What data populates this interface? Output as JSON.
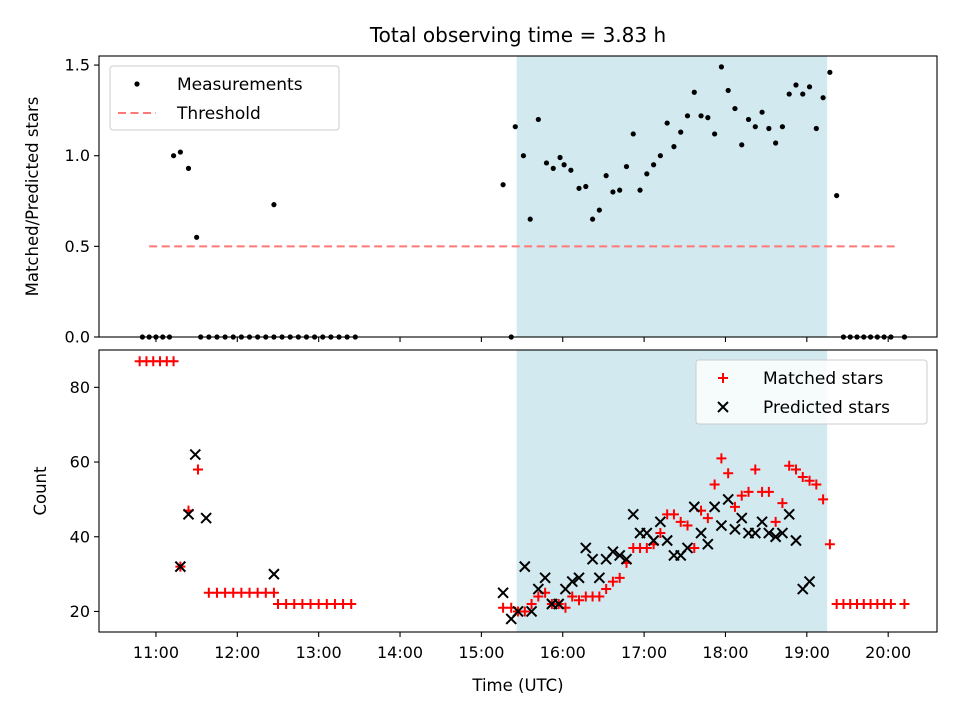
{
  "chart_data": {
    "title": "Total observing time = 3.83 h",
    "xlabel": "Time (UTC)",
    "x_ticks": [
      "11:00",
      "12:00",
      "13:00",
      "14:00",
      "15:00",
      "16:00",
      "17:00",
      "18:00",
      "19:00",
      "20:00"
    ],
    "shaded_span": [
      "15:26",
      "19:15"
    ],
    "shade_color": "#d2e9f0",
    "panels": [
      {
        "type": "scatter",
        "ylabel": "Matched/Predicted stars",
        "ylim": [
          0,
          1.55
        ],
        "y_ticks": [
          "0.0",
          "0.5",
          "1.0",
          "1.5"
        ],
        "legend_position": "upper-left",
        "series": [
          {
            "name": "Measurements",
            "marker": "dot",
            "color": "#000000",
            "points": [
              [
                "10:50",
                0
              ],
              [
                "10:55",
                0
              ],
              [
                "11:00",
                0
              ],
              [
                "11:05",
                0
              ],
              [
                "11:10",
                0
              ],
              [
                "11:13",
                1.0
              ],
              [
                "11:18",
                1.02
              ],
              [
                "11:24",
                0.93
              ],
              [
                "11:30",
                0.55
              ],
              [
                "11:33",
                0
              ],
              [
                "11:39",
                0
              ],
              [
                "11:45",
                0
              ],
              [
                "11:51",
                0
              ],
              [
                "11:57",
                0
              ],
              [
                "12:03",
                0
              ],
              [
                "12:09",
                0
              ],
              [
                "12:15",
                0
              ],
              [
                "12:21",
                0
              ],
              [
                "12:27",
                0
              ],
              [
                "12:27",
                0.73
              ],
              [
                "12:33",
                0
              ],
              [
                "12:39",
                0
              ],
              [
                "12:45",
                0
              ],
              [
                "12:51",
                0
              ],
              [
                "12:57",
                0
              ],
              [
                "13:03",
                0
              ],
              [
                "13:09",
                0
              ],
              [
                "13:15",
                0
              ],
              [
                "13:21",
                0
              ],
              [
                "13:27",
                0
              ],
              [
                "15:16",
                0.84
              ],
              [
                "15:22",
                0
              ],
              [
                "15:25",
                1.16
              ],
              [
                "15:31",
                1.0
              ],
              [
                "15:36",
                0.65
              ],
              [
                "15:42",
                1.2
              ],
              [
                "15:48",
                0.96
              ],
              [
                "15:53",
                0.93
              ],
              [
                "15:58",
                0.99
              ],
              [
                "16:01",
                0.95
              ],
              [
                "16:06",
                0.92
              ],
              [
                "16:12",
                0.82
              ],
              [
                "16:17",
                0.83
              ],
              [
                "16:22",
                0.65
              ],
              [
                "16:27",
                0.7
              ],
              [
                "16:32",
                0.89
              ],
              [
                "16:37",
                0.8
              ],
              [
                "16:42",
                0.81
              ],
              [
                "16:47",
                0.94
              ],
              [
                "16:52",
                1.12
              ],
              [
                "16:57",
                0.81
              ],
              [
                "17:02",
                0.9
              ],
              [
                "17:07",
                0.95
              ],
              [
                "17:12",
                1.0
              ],
              [
                "17:17",
                1.18
              ],
              [
                "17:22",
                1.05
              ],
              [
                "17:27",
                1.13
              ],
              [
                "17:32",
                1.22
              ],
              [
                "17:37",
                1.35
              ],
              [
                "17:42",
                1.22
              ],
              [
                "17:47",
                1.21
              ],
              [
                "17:52",
                1.12
              ],
              [
                "17:57",
                1.49
              ],
              [
                "18:02",
                1.36
              ],
              [
                "18:07",
                1.26
              ],
              [
                "18:12",
                1.06
              ],
              [
                "18:17",
                1.2
              ],
              [
                "18:22",
                1.16
              ],
              [
                "18:27",
                1.24
              ],
              [
                "18:32",
                1.15
              ],
              [
                "18:37",
                1.07
              ],
              [
                "18:42",
                1.16
              ],
              [
                "18:47",
                1.34
              ],
              [
                "18:52",
                1.39
              ],
              [
                "18:57",
                1.34
              ],
              [
                "19:02",
                1.38
              ],
              [
                "19:07",
                1.15
              ],
              [
                "19:12",
                1.32
              ],
              [
                "19:17",
                1.46
              ],
              [
                "19:22",
                0.78
              ],
              [
                "19:27",
                0
              ],
              [
                "19:32",
                0
              ],
              [
                "19:37",
                0
              ],
              [
                "19:42",
                0
              ],
              [
                "19:47",
                0
              ],
              [
                "19:52",
                0
              ],
              [
                "19:57",
                0
              ],
              [
                "20:02",
                0
              ],
              [
                "20:12",
                0
              ]
            ]
          },
          {
            "name": "Threshold",
            "marker": "dashed-line",
            "color": "#ff7777",
            "points": [
              [
                "10:55",
                0.5
              ],
              [
                "20:05",
                0.5
              ]
            ]
          }
        ]
      },
      {
        "type": "scatter",
        "ylabel": "Count",
        "ylim": [
          14.5,
          90
        ],
        "y_ticks": [
          "20",
          "40",
          "60",
          "80"
        ],
        "legend_position": "upper-right",
        "series": [
          {
            "name": "Matched stars",
            "marker": "plus",
            "color": "#ff0000",
            "points": [
              [
                "10:48",
                87
              ],
              [
                "10:53",
                87
              ],
              [
                "10:58",
                87
              ],
              [
                "11:03",
                87
              ],
              [
                "11:08",
                87
              ],
              [
                "11:13",
                87
              ],
              [
                "11:18",
                32
              ],
              [
                "11:24",
                47
              ],
              [
                "11:31",
                58
              ],
              [
                "11:39",
                25
              ],
              [
                "11:45",
                25
              ],
              [
                "11:51",
                25
              ],
              [
                "11:57",
                25
              ],
              [
                "12:03",
                25
              ],
              [
                "12:09",
                25
              ],
              [
                "12:15",
                25
              ],
              [
                "12:21",
                25
              ],
              [
                "12:27",
                25
              ],
              [
                "12:30",
                22
              ],
              [
                "12:36",
                22
              ],
              [
                "12:42",
                22
              ],
              [
                "12:48",
                22
              ],
              [
                "12:54",
                22
              ],
              [
                "13:00",
                22
              ],
              [
                "13:06",
                22
              ],
              [
                "13:12",
                22
              ],
              [
                "13:18",
                22
              ],
              [
                "13:24",
                22
              ],
              [
                "15:16",
                21
              ],
              [
                "15:22",
                21
              ],
              [
                "15:27",
                20
              ],
              [
                "15:32",
                20
              ],
              [
                "15:37",
                22
              ],
              [
                "15:42",
                24
              ],
              [
                "15:47",
                25
              ],
              [
                "15:52",
                22
              ],
              [
                "15:57",
                22
              ],
              [
                "16:02",
                21
              ],
              [
                "16:07",
                24
              ],
              [
                "16:12",
                23
              ],
              [
                "16:17",
                24
              ],
              [
                "16:22",
                24
              ],
              [
                "16:27",
                24
              ],
              [
                "16:32",
                26
              ],
              [
                "16:37",
                28
              ],
              [
                "16:42",
                29
              ],
              [
                "16:47",
                33
              ],
              [
                "16:52",
                37
              ],
              [
                "16:57",
                37
              ],
              [
                "17:02",
                37
              ],
              [
                "17:07",
                38
              ],
              [
                "17:12",
                41
              ],
              [
                "17:17",
                46
              ],
              [
                "17:22",
                46
              ],
              [
                "17:27",
                44
              ],
              [
                "17:32",
                43
              ],
              [
                "17:37",
                37
              ],
              [
                "17:42",
                47
              ],
              [
                "17:47",
                45
              ],
              [
                "17:52",
                54
              ],
              [
                "17:57",
                61
              ],
              [
                "18:02",
                57
              ],
              [
                "18:07",
                48
              ],
              [
                "18:12",
                51
              ],
              [
                "18:17",
                52
              ],
              [
                "18:22",
                58
              ],
              [
                "18:27",
                52
              ],
              [
                "18:32",
                52
              ],
              [
                "18:37",
                44
              ],
              [
                "18:42",
                49
              ],
              [
                "18:47",
                59
              ],
              [
                "18:52",
                58
              ],
              [
                "18:57",
                56
              ],
              [
                "19:02",
                55
              ],
              [
                "19:07",
                54
              ],
              [
                "19:12",
                50
              ],
              [
                "19:17",
                38
              ],
              [
                "19:22",
                22
              ],
              [
                "19:27",
                22
              ],
              [
                "19:32",
                22
              ],
              [
                "19:37",
                22
              ],
              [
                "19:42",
                22
              ],
              [
                "19:47",
                22
              ],
              [
                "19:52",
                22
              ],
              [
                "19:57",
                22
              ],
              [
                "20:02",
                22
              ],
              [
                "20:12",
                22
              ]
            ]
          },
          {
            "name": "Predicted stars",
            "marker": "x",
            "color": "#000000",
            "points": [
              [
                "11:18",
                32
              ],
              [
                "11:24",
                46
              ],
              [
                "11:29",
                62
              ],
              [
                "11:37",
                45
              ],
              [
                "12:27",
                30
              ],
              [
                "15:16",
                25
              ],
              [
                "15:22",
                18
              ],
              [
                "15:27",
                20
              ],
              [
                "15:32",
                32
              ],
              [
                "15:37",
                20
              ],
              [
                "15:42",
                26
              ],
              [
                "15:47",
                29
              ],
              [
                "15:52",
                22
              ],
              [
                "15:57",
                22
              ],
              [
                "16:02",
                26
              ],
              [
                "16:07",
                28
              ],
              [
                "16:12",
                29
              ],
              [
                "16:17",
                37
              ],
              [
                "16:22",
                34
              ],
              [
                "16:27",
                29
              ],
              [
                "16:32",
                34
              ],
              [
                "16:37",
                36
              ],
              [
                "16:42",
                35
              ],
              [
                "16:47",
                34
              ],
              [
                "16:52",
                46
              ],
              [
                "16:57",
                41
              ],
              [
                "17:02",
                41
              ],
              [
                "17:07",
                39
              ],
              [
                "17:12",
                44
              ],
              [
                "17:17",
                39
              ],
              [
                "17:22",
                35
              ],
              [
                "17:27",
                35
              ],
              [
                "17:32",
                37
              ],
              [
                "17:37",
                48
              ],
              [
                "17:42",
                41
              ],
              [
                "17:47",
                38
              ],
              [
                "17:52",
                48
              ],
              [
                "17:57",
                43
              ],
              [
                "18:02",
                50
              ],
              [
                "18:07",
                42
              ],
              [
                "18:12",
                45
              ],
              [
                "18:17",
                41
              ],
              [
                "18:22",
                41
              ],
              [
                "18:27",
                44
              ],
              [
                "18:32",
                41
              ],
              [
                "18:37",
                40
              ],
              [
                "18:42",
                41
              ],
              [
                "18:47",
                46
              ],
              [
                "18:52",
                39
              ],
              [
                "18:57",
                26
              ],
              [
                "19:02",
                28
              ]
            ]
          }
        ]
      }
    ]
  }
}
